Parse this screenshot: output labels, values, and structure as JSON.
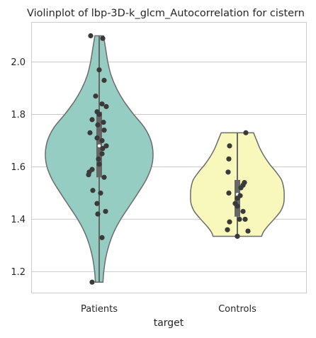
{
  "chart_data": {
    "type": "violin",
    "title": "Violinplot of lbp-3D-k_glcm_Autocorrelation for cistern",
    "xlabel": "target",
    "ylabel": "",
    "categories": [
      "Patients",
      "Controls"
    ],
    "ylim": [
      1.12,
      2.15
    ],
    "yticks": [
      1.2,
      1.4,
      1.6,
      1.8,
      2.0
    ],
    "ytick_labels": [
      "1.2",
      "1.4",
      "1.6",
      "1.8",
      "2.0"
    ],
    "grid": true,
    "colors": {
      "Patients": "#96cdc2",
      "Controls": "#f8f8bd",
      "outline": "#6b6b6b",
      "box": "#666666",
      "points": "#3a3a3a",
      "grid": "#cccccc"
    },
    "violins": [
      {
        "category": "Patients",
        "min": 1.16,
        "max": 2.1,
        "q1": 1.56,
        "median": 1.68,
        "q3": 1.81,
        "profile": [
          [
            2.1,
            0.08
          ],
          [
            2.05,
            0.12
          ],
          [
            2.0,
            0.16
          ],
          [
            1.95,
            0.22
          ],
          [
            1.9,
            0.32
          ],
          [
            1.85,
            0.46
          ],
          [
            1.8,
            0.64
          ],
          [
            1.75,
            0.84
          ],
          [
            1.7,
            0.96
          ],
          [
            1.65,
            1.0
          ],
          [
            1.6,
            0.97
          ],
          [
            1.55,
            0.87
          ],
          [
            1.5,
            0.72
          ],
          [
            1.45,
            0.56
          ],
          [
            1.4,
            0.4
          ],
          [
            1.35,
            0.27
          ],
          [
            1.3,
            0.18
          ],
          [
            1.25,
            0.12
          ],
          [
            1.2,
            0.085
          ],
          [
            1.16,
            0.07
          ]
        ],
        "points": [
          [
            2.1,
            -0.12
          ],
          [
            2.09,
            0.05
          ],
          [
            1.97,
            0.0
          ],
          [
            1.93,
            0.07
          ],
          [
            1.87,
            -0.05
          ],
          [
            1.84,
            0.04
          ],
          [
            1.83,
            0.1
          ],
          [
            1.81,
            -0.03
          ],
          [
            1.8,
            0.0
          ],
          [
            1.78,
            -0.1
          ],
          [
            1.77,
            0.06
          ],
          [
            1.76,
            -0.02
          ],
          [
            1.74,
            0.07
          ],
          [
            1.73,
            -0.13
          ],
          [
            1.71,
            -0.03
          ],
          [
            1.7,
            0.04
          ],
          [
            1.68,
            0.1
          ],
          [
            1.67,
            0.05
          ],
          [
            1.65,
            0.04
          ],
          [
            1.63,
            -0.01
          ],
          [
            1.61,
            0.0
          ],
          [
            1.59,
            -0.1
          ],
          [
            1.58,
            -0.14
          ],
          [
            1.57,
            -0.15
          ],
          [
            1.56,
            0.07
          ],
          [
            1.51,
            -0.09
          ],
          [
            1.5,
            0.02
          ],
          [
            1.46,
            -0.03
          ],
          [
            1.43,
            0.09
          ],
          [
            1.42,
            -0.02
          ],
          [
            1.33,
            0.04
          ],
          [
            1.16,
            -0.1
          ]
        ]
      },
      {
        "category": "Controls",
        "min": 1.335,
        "max": 1.73,
        "q1": 1.41,
        "median": 1.495,
        "q3": 1.55,
        "profile": [
          [
            1.73,
            0.3
          ],
          [
            1.7,
            0.36
          ],
          [
            1.67,
            0.42
          ],
          [
            1.64,
            0.5
          ],
          [
            1.61,
            0.6
          ],
          [
            1.58,
            0.72
          ],
          [
            1.55,
            0.82
          ],
          [
            1.52,
            0.86
          ],
          [
            1.49,
            0.87
          ],
          [
            1.46,
            0.86
          ],
          [
            1.43,
            0.8
          ],
          [
            1.4,
            0.68
          ],
          [
            1.37,
            0.55
          ],
          [
            1.35,
            0.48
          ],
          [
            1.335,
            0.45
          ]
        ],
        "points": [
          [
            1.73,
            0.12
          ],
          [
            1.68,
            -0.11
          ],
          [
            1.63,
            -0.12
          ],
          [
            1.58,
            -0.13
          ],
          [
            1.54,
            0.1
          ],
          [
            1.53,
            0.08
          ],
          [
            1.52,
            0.05
          ],
          [
            1.5,
            -0.12
          ],
          [
            1.49,
            0.04
          ],
          [
            1.48,
            0.0
          ],
          [
            1.46,
            -0.03
          ],
          [
            1.45,
            0.0
          ],
          [
            1.43,
            0.08
          ],
          [
            1.4,
            0.03
          ],
          [
            1.4,
            0.11
          ],
          [
            1.39,
            -0.11
          ],
          [
            1.36,
            -0.14
          ],
          [
            1.355,
            0.15
          ],
          [
            1.335,
            0.0
          ]
        ]
      }
    ]
  }
}
